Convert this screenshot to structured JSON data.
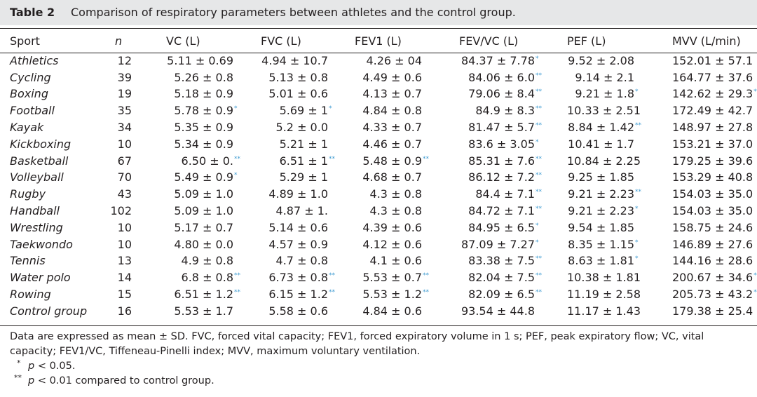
{
  "caption": {
    "label": "Table 2",
    "title": "Comparison of respiratory parameters between athletes and the control group."
  },
  "columns": [
    "Sport",
    "n",
    "VC (L)",
    "FVC (L)",
    "FEV1 (L)",
    "FEV/VC (L)",
    "PEF (L)",
    "MVV (L/min)"
  ],
  "rows": [
    {
      "sport": "Athletics",
      "n": "12",
      "vc": "5.11 ± 0.69",
      "vc_sig": "",
      "fvc": "4.94 ± 10.7",
      "fvc_sig": "",
      "fev1": "4.26 ± 04",
      "fev1_sig": "",
      "fevvc": "84.37 ± 7.78",
      "fevvc_sig": "*",
      "pef": "9.52 ± 2.08",
      "pef_sig": "",
      "mvv": "152.01 ± 57.1",
      "mvv_sig": ""
    },
    {
      "sport": "Cycling",
      "n": "39",
      "vc": "5.26 ± 0.8",
      "vc_sig": "",
      "fvc": "5.13 ± 0.8",
      "fvc_sig": "",
      "fev1": "4.49 ± 0.6",
      "fev1_sig": "",
      "fevvc": "84.06 ± 6.0",
      "fevvc_sig": "**",
      "pef": "9.14 ± 2.1",
      "pef_sig": "",
      "mvv": "164.77 ± 37.6",
      "mvv_sig": ""
    },
    {
      "sport": "Boxing",
      "n": "19",
      "vc": "5.18 ± 0.9",
      "vc_sig": "",
      "fvc": "5.01 ± 0.6",
      "fvc_sig": "",
      "fev1": "4.13 ± 0.7",
      "fev1_sig": "",
      "fevvc": "79.06 ± 8.4",
      "fevvc_sig": "**",
      "pef": "9.21 ± 1.8",
      "pef_sig": "*",
      "mvv": "142.62 ± 29.3",
      "mvv_sig": "*"
    },
    {
      "sport": "Football",
      "n": "35",
      "vc": "5.78 ± 0.9",
      "vc_sig": "*",
      "fvc": "5.69 ± 1",
      "fvc_sig": "*",
      "fev1": "4.84 ± 0.8",
      "fev1_sig": "",
      "fevvc": "84.9 ± 8.3",
      "fevvc_sig": "**",
      "pef": "10.33 ± 2.51",
      "pef_sig": "",
      "mvv": "172.49 ± 42.7",
      "mvv_sig": ""
    },
    {
      "sport": "Kayak",
      "n": "34",
      "vc": "5.35 ± 0.9",
      "vc_sig": "",
      "fvc": "5.2 ± 0.0",
      "fvc_sig": "",
      "fev1": "4.33 ± 0.7",
      "fev1_sig": "",
      "fevvc": "81.47 ± 5.7",
      "fevvc_sig": "**",
      "pef": "8.84 ± 1.42",
      "pef_sig": "**",
      "mvv": "148.97 ± 27.8",
      "mvv_sig": ""
    },
    {
      "sport": "Kickboxing",
      "n": "10",
      "vc": "5.34 ± 0.9",
      "vc_sig": "",
      "fvc": "5.21 ± 1",
      "fvc_sig": "",
      "fev1": "4.46 ± 0.7",
      "fev1_sig": "",
      "fevvc": "83.6 ± 3.05",
      "fevvc_sig": "*",
      "pef": "10.41 ± 1.7",
      "pef_sig": "",
      "mvv": "153.21 ± 37.0",
      "mvv_sig": ""
    },
    {
      "sport": "Basketball",
      "n": "67",
      "vc": "6.50 ± 0.",
      "vc_sig": "**",
      "fvc": "6.51 ± 1",
      "fvc_sig": "**",
      "fev1": "5.48 ± 0.9",
      "fev1_sig": "**",
      "fevvc": "85.31 ± 7.6",
      "fevvc_sig": "**",
      "pef": "10.84 ± 2.25",
      "pef_sig": "",
      "mvv": "179.25 ± 39.6",
      "mvv_sig": ""
    },
    {
      "sport": "Volleyball",
      "n": "70",
      "vc": "5.49 ± 0.9",
      "vc_sig": "*",
      "fvc": "5.29 ± 1",
      "fvc_sig": "",
      "fev1": "4.68 ± 0.7",
      "fev1_sig": "",
      "fevvc": "86.12 ± 7.2",
      "fevvc_sig": "**",
      "pef": "9.25 ± 1.85",
      "pef_sig": "",
      "mvv": "153.29 ± 40.8",
      "mvv_sig": ""
    },
    {
      "sport": "Rugby",
      "n": "43",
      "vc": "5.09 ± 1.0",
      "vc_sig": "",
      "fvc": "4.89 ± 1.0",
      "fvc_sig": "",
      "fev1": "4.3 ± 0.8",
      "fev1_sig": "",
      "fevvc": "84.4 ± 7.1",
      "fevvc_sig": "**",
      "pef": "9.21 ± 2.23",
      "pef_sig": "**",
      "mvv": "154.03 ± 35.0",
      "mvv_sig": ""
    },
    {
      "sport": "Handball",
      "n": "102",
      "vc": "5.09 ± 1.0",
      "vc_sig": "",
      "fvc": "4.87 ± 1.",
      "fvc_sig": "",
      "fev1": "4.3 ± 0.8",
      "fev1_sig": "",
      "fevvc": "84.72 ± 7.1",
      "fevvc_sig": "**",
      "pef": "9.21 ± 2.23",
      "pef_sig": "*",
      "mvv": "154.03 ± 35.0",
      "mvv_sig": ""
    },
    {
      "sport": "Wrestling",
      "n": "10",
      "vc": "5.17 ± 0.7",
      "vc_sig": "",
      "fvc": "5.14 ± 0.6",
      "fvc_sig": "",
      "fev1": "4.39 ± 0.6",
      "fev1_sig": "",
      "fevvc": "84.95 ± 6.5",
      "fevvc_sig": "*",
      "pef": "9.54 ± 1.85",
      "pef_sig": "",
      "mvv": "158.75 ± 24.6",
      "mvv_sig": ""
    },
    {
      "sport": "Taekwondo",
      "n": "10",
      "vc": "4.80 ± 0.0",
      "vc_sig": "",
      "fvc": "4.57 ± 0.9",
      "fvc_sig": "",
      "fev1": "4.12 ± 0.6",
      "fev1_sig": "",
      "fevvc": "87.09 ± 7.27",
      "fevvc_sig": "*",
      "pef": "8.35 ± 1.15",
      "pef_sig": "*",
      "mvv": "146.89 ± 27.6",
      "mvv_sig": ""
    },
    {
      "sport": "Tennis",
      "n": "13",
      "vc": "4.9 ± 0.8",
      "vc_sig": "",
      "fvc": "4.7 ± 0.8",
      "fvc_sig": "",
      "fev1": "4.1 ± 0.6",
      "fev1_sig": "",
      "fevvc": "83.38 ± 7.5",
      "fevvc_sig": "**",
      "pef": "8.63 ± 1.81",
      "pef_sig": "*",
      "mvv": "144.16 ± 28.6",
      "mvv_sig": ""
    },
    {
      "sport": "Water polo",
      "n": "14",
      "vc": "6.8 ± 0.8",
      "vc_sig": "**",
      "fvc": "6.73 ± 0.8",
      "fvc_sig": "**",
      "fev1": "5.53 ± 0.7",
      "fev1_sig": "**",
      "fevvc": "82.04 ± 7.5",
      "fevvc_sig": "**",
      "pef": "10.38 ± 1.81",
      "pef_sig": "",
      "mvv": "200.67 ± 34.6",
      "mvv_sig": "*"
    },
    {
      "sport": "Rowing",
      "n": "15",
      "vc": "6.51 ± 1.2",
      "vc_sig": "**",
      "fvc": "6.15 ± 1.2",
      "fvc_sig": "**",
      "fev1": "5.53 ± 1.2",
      "fev1_sig": "**",
      "fevvc": "82.09 ± 6.5",
      "fevvc_sig": "**",
      "pef": "11.19 ± 2.58",
      "pef_sig": "",
      "mvv": "205.73 ± 43.2",
      "mvv_sig": "**"
    },
    {
      "sport": "Control group",
      "n": "16",
      "vc": "5.53 ± 1.7",
      "vc_sig": "",
      "fvc": "5.58 ± 0.6",
      "fvc_sig": "",
      "fev1": "4.84 ± 0.6",
      "fev1_sig": "",
      "fevvc": "93.54 ± 44.8",
      "fevvc_sig": "",
      "pef": "11.17 ± 1.43",
      "pef_sig": "",
      "mvv": "179.38 ± 25.4",
      "mvv_sig": ""
    }
  ],
  "notes": {
    "text": "Data are expressed as mean ± SD. FVC, forced vital capacity; FEV1, forced expiratory volume in 1 s; PEF, peak expiratory flow; VC, vital capacity; FEV1/VC, Tiffeneau-Pinelli index; MVV, maximum voluntary ventilation.",
    "fn1_mark": "*",
    "fn1_p": "p",
    "fn1_text": " < 0.05.",
    "fn2_mark": "**",
    "fn2_p": "p",
    "fn2_text": " < 0.01 compared to control group."
  }
}
